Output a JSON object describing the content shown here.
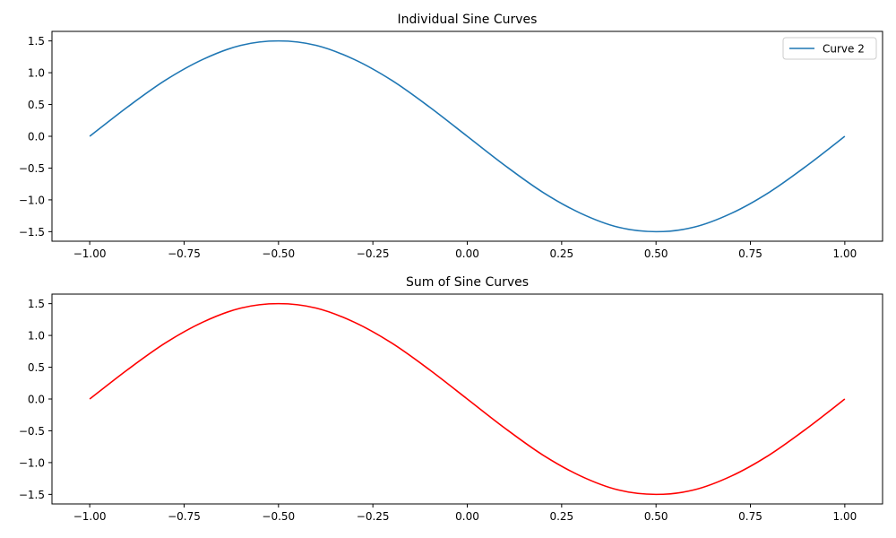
{
  "chart_data": [
    {
      "type": "line",
      "title": "Individual Sine Curves",
      "xlabel": "",
      "ylabel": "",
      "xlim": [
        -1.1,
        1.1
      ],
      "ylim": [
        -1.65,
        1.65
      ],
      "xticks": [
        -1.0,
        -0.75,
        -0.5,
        -0.25,
        0.0,
        0.25,
        0.5,
        0.75,
        1.0
      ],
      "xtick_labels": [
        "−1.00",
        "−0.75",
        "−0.50",
        "−0.25",
        "0.00",
        "0.25",
        "0.50",
        "0.75",
        "1.00"
      ],
      "yticks": [
        1.5,
        1.0,
        0.5,
        0.0,
        -0.5,
        -1.0,
        -1.5
      ],
      "ytick_labels": [
        "1.5",
        "1.0",
        "0.5",
        "0.0",
        "−0.5",
        "−1.0",
        "−1.5"
      ],
      "grid": false,
      "legend": {
        "placement": "top-right"
      },
      "series": [
        {
          "name": "Curve 2",
          "color": "#1f77b4",
          "x": [
            -1.0,
            -0.9,
            -0.8,
            -0.7,
            -0.6,
            -0.5,
            -0.4,
            -0.3,
            -0.2,
            -0.1,
            0.0,
            0.1,
            0.2,
            0.3,
            0.4,
            0.5,
            0.6,
            0.7,
            0.8,
            0.9,
            1.0
          ],
          "y": [
            0.0,
            0.46,
            0.88,
            1.21,
            1.43,
            1.5,
            1.43,
            1.21,
            0.88,
            0.46,
            0.0,
            -0.46,
            -0.88,
            -1.21,
            -1.43,
            -1.5,
            -1.43,
            -1.21,
            -0.88,
            -0.46,
            0.0
          ]
        }
      ]
    },
    {
      "type": "line",
      "title": "Sum of Sine Curves",
      "xlabel": "",
      "ylabel": "",
      "xlim": [
        -1.1,
        1.1
      ],
      "ylim": [
        -1.65,
        1.65
      ],
      "xticks": [
        -1.0,
        -0.75,
        -0.5,
        -0.25,
        0.0,
        0.25,
        0.5,
        0.75,
        1.0
      ],
      "xtick_labels": [
        "−1.00",
        "−0.75",
        "−0.50",
        "−0.25",
        "0.00",
        "0.25",
        "0.50",
        "0.75",
        "1.00"
      ],
      "yticks": [
        1.5,
        1.0,
        0.5,
        0.0,
        -0.5,
        -1.0,
        -1.5
      ],
      "ytick_labels": [
        "1.5",
        "1.0",
        "0.5",
        "0.0",
        "−0.5",
        "−1.0",
        "−1.5"
      ],
      "grid": false,
      "series": [
        {
          "color": "#ff0000",
          "x": [
            -1.0,
            -0.9,
            -0.8,
            -0.7,
            -0.6,
            -0.5,
            -0.4,
            -0.3,
            -0.2,
            -0.1,
            0.0,
            0.1,
            0.2,
            0.3,
            0.4,
            0.5,
            0.6,
            0.7,
            0.8,
            0.9,
            1.0
          ],
          "y": [
            0.0,
            0.46,
            0.88,
            1.21,
            1.43,
            1.5,
            1.43,
            1.21,
            0.88,
            0.46,
            0.0,
            -0.46,
            -0.88,
            -1.21,
            -1.43,
            -1.5,
            -1.43,
            -1.21,
            -0.88,
            -0.46,
            0.0
          ]
        }
      ]
    }
  ]
}
